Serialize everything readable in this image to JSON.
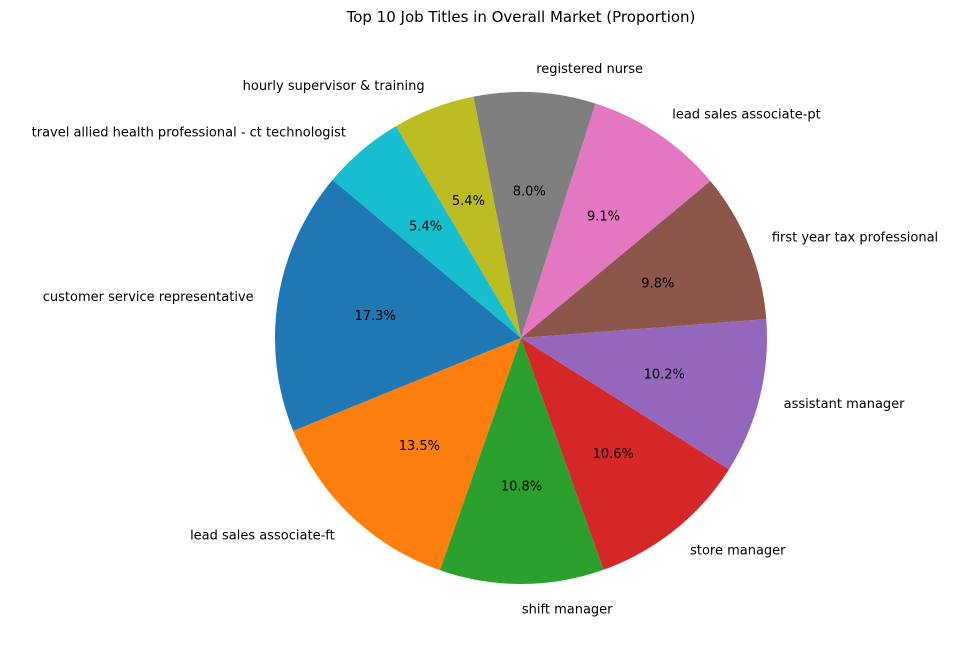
{
  "chart_data": {
    "type": "pie",
    "title": "Top 10 Job Titles in Overall Market (Proportion)",
    "start_angle_deg": 140,
    "direction": "counterclockwise",
    "slices": [
      {
        "label": "customer service representative",
        "percent": 17.3,
        "pct_text": "17.3%",
        "color": "#1f77b4"
      },
      {
        "label": "lead sales associate-ft",
        "percent": 13.5,
        "pct_text": "13.5%",
        "color": "#ff7f0e"
      },
      {
        "label": "shift manager",
        "percent": 10.8,
        "pct_text": "10.8%",
        "color": "#2ca02c"
      },
      {
        "label": "store manager",
        "percent": 10.6,
        "pct_text": "10.6%",
        "color": "#d62728"
      },
      {
        "label": "assistant manager",
        "percent": 10.2,
        "pct_text": "10.2%",
        "color": "#9467bd"
      },
      {
        "label": "first year tax professional",
        "percent": 9.8,
        "pct_text": "9.8%",
        "color": "#8c564b"
      },
      {
        "label": "lead sales associate-pt",
        "percent": 9.1,
        "pct_text": "9.1%",
        "color": "#e377c2"
      },
      {
        "label": "registered nurse",
        "percent": 8.0,
        "pct_text": "8.0%",
        "color": "#7f7f7f"
      },
      {
        "label": "hourly supervisor & training",
        "percent": 5.4,
        "pct_text": "5.4%",
        "color": "#bcbd22"
      },
      {
        "label": "travel allied health professional - ct technologist",
        "percent": 5.4,
        "pct_text": "5.4%",
        "color": "#17becf"
      }
    ]
  }
}
